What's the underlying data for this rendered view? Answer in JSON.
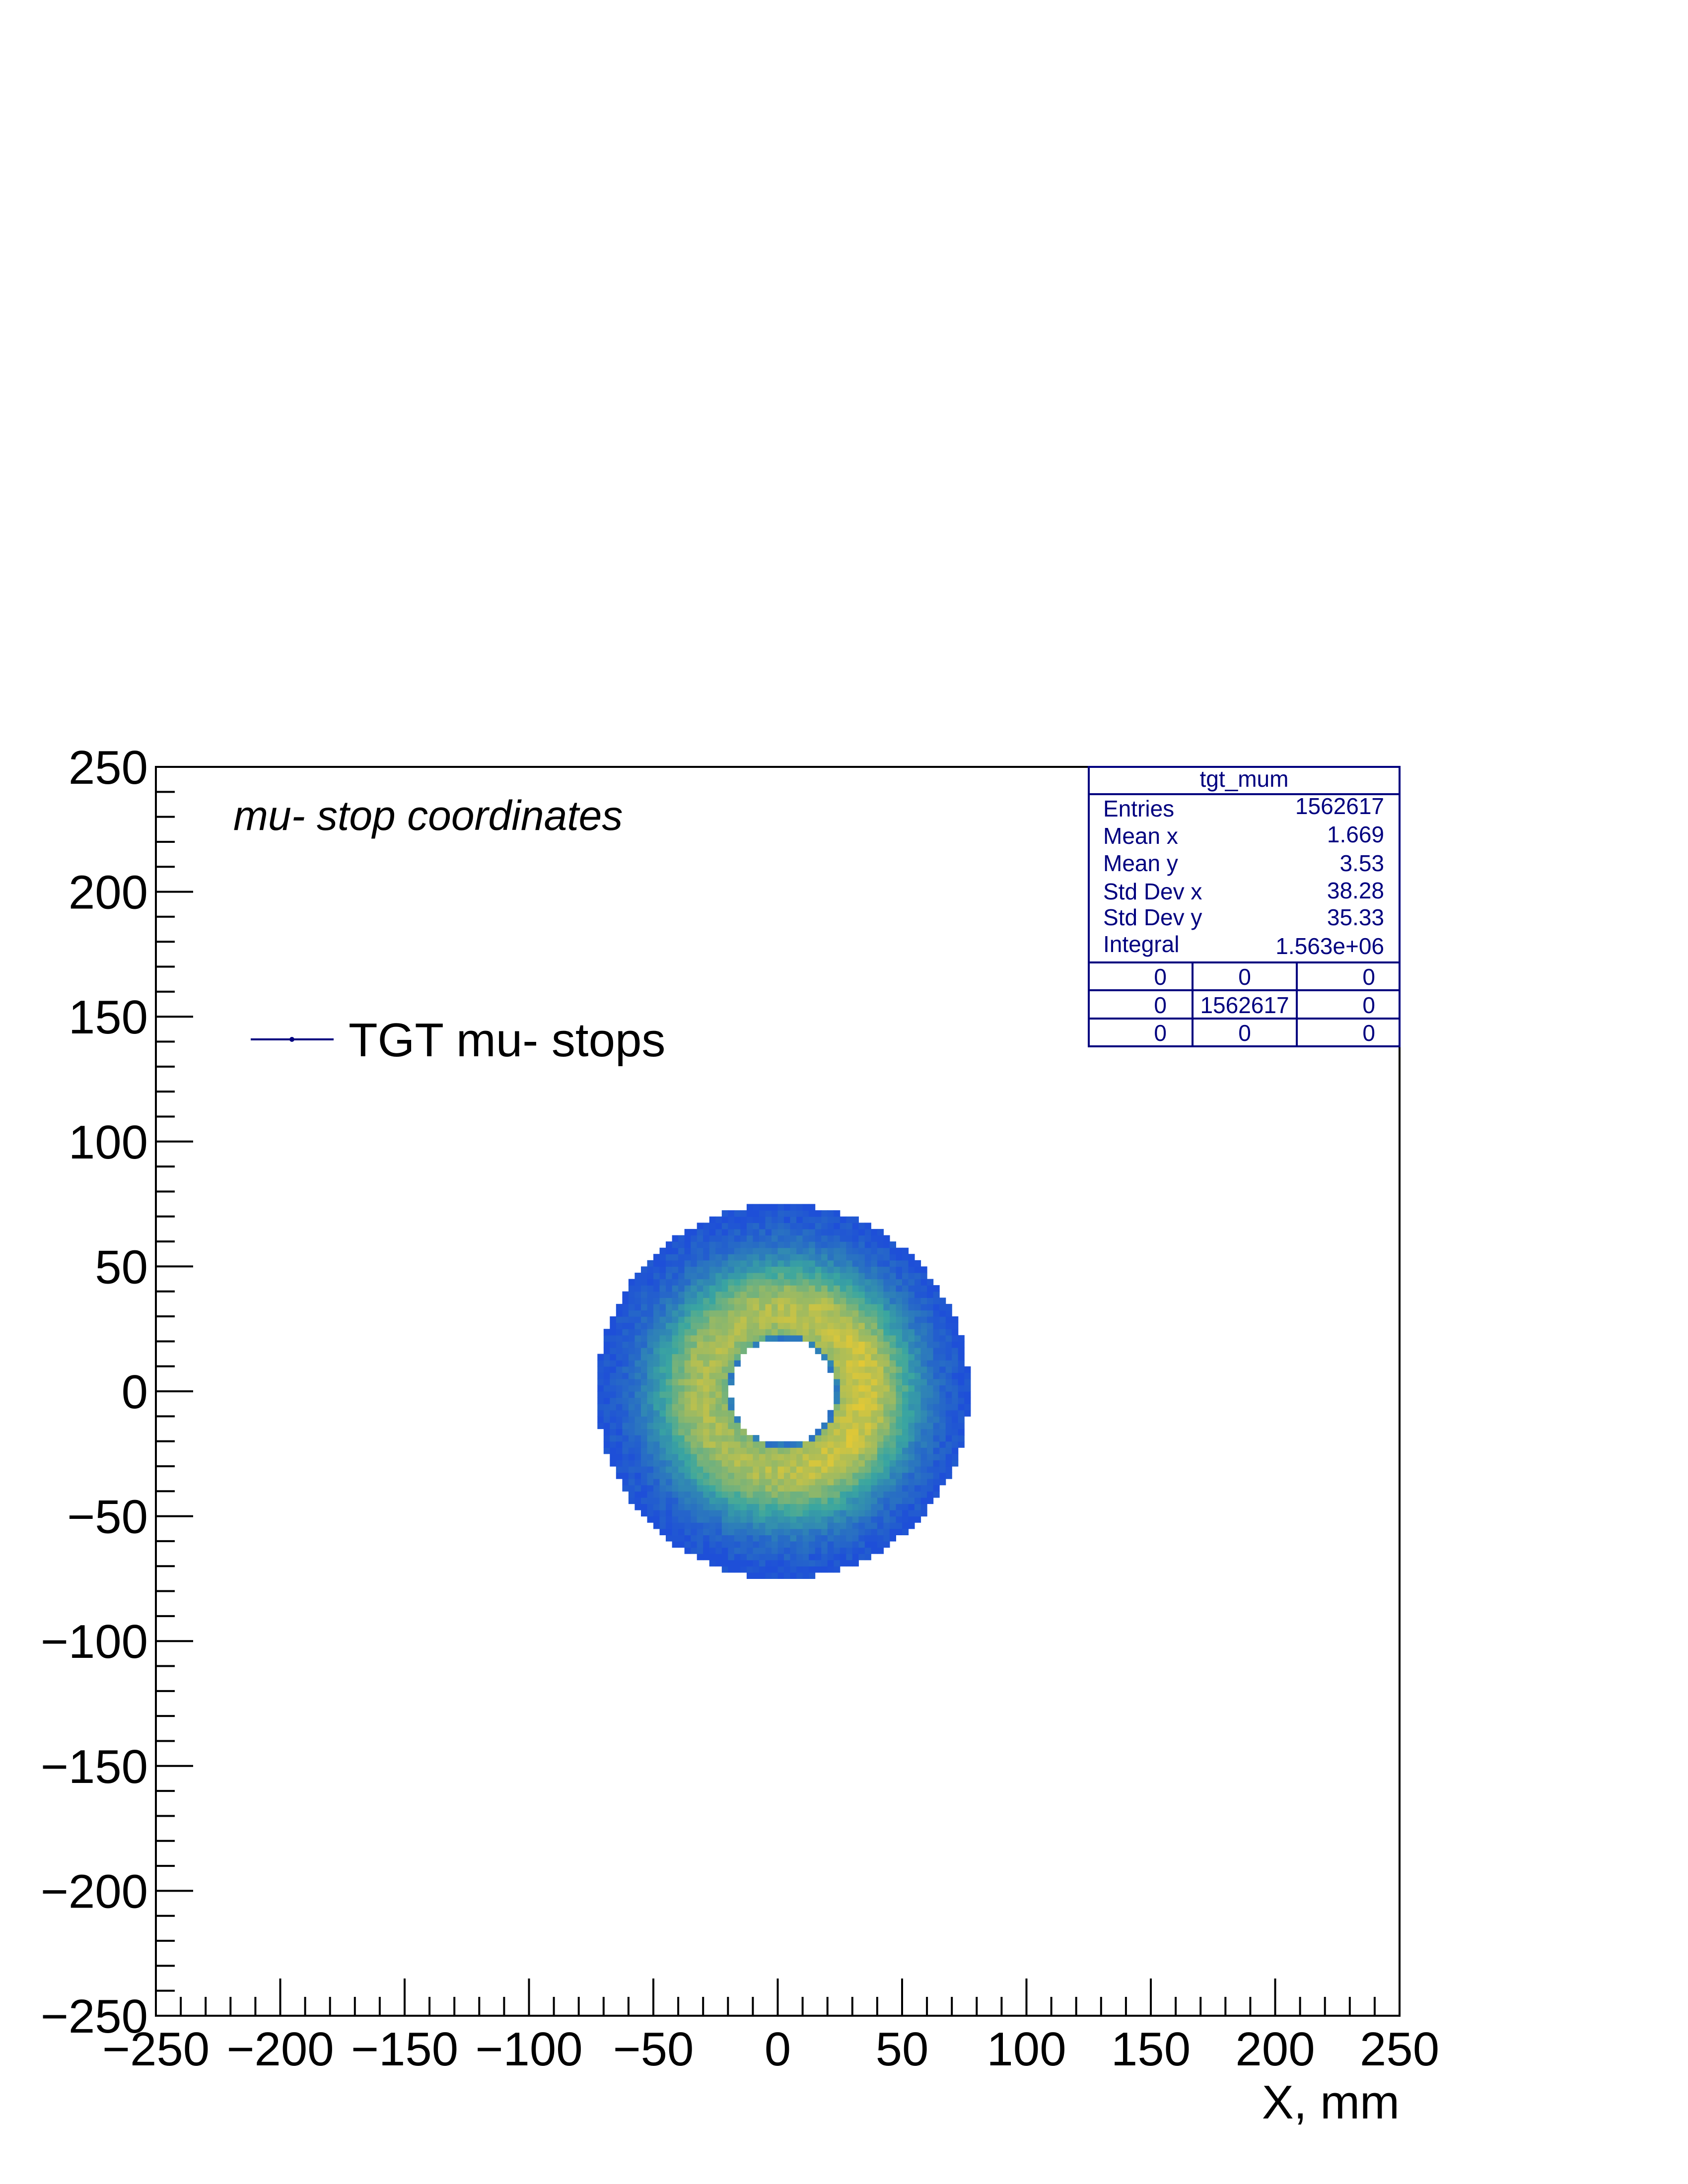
{
  "chart_data": {
    "type": "heatmap",
    "title": "",
    "annotation": "mu- stop coordinates",
    "xlabel": "X, mm",
    "ylabel": "",
    "xlim": [
      -250,
      250
    ],
    "ylim": [
      -250,
      250
    ],
    "xticks": [
      "−250",
      "−200",
      "−150",
      "−100",
      "−50",
      "0",
      "50",
      "100",
      "150",
      "200",
      "250"
    ],
    "yticks": [
      "250",
      "200",
      "150",
      "100",
      "50",
      "0",
      "−50",
      "−100",
      "−150",
      "−200",
      "−250"
    ],
    "grid": false,
    "legend": {
      "placement": "top-left",
      "entries": [
        {
          "label": "TGT mu- stops",
          "color": "#00007f"
        }
      ]
    },
    "distribution": {
      "shape": "annulus",
      "center": [
        2,
        0
      ],
      "inner_radius": 21,
      "outer_radius": 75,
      "bin_width_mm": 2.5,
      "peak_radius": 32,
      "peak_offset_x": 14
    },
    "colors": {
      "low": "#1e4fd8",
      "mid": "#3aa6a0",
      "high": "#f4cc2a",
      "stats_frame": "#00007f"
    },
    "stats": {
      "name": "tgt_mum",
      "rows": [
        {
          "label": "Entries",
          "value": "1562617"
        },
        {
          "label": "Mean x",
          "value": "1.669"
        },
        {
          "label": "Mean y",
          "value": "3.53"
        },
        {
          "label": "Std Dev x",
          "value": "38.28"
        },
        {
          "label": "Std Dev y",
          "value": "35.33"
        },
        {
          "label": "Integral",
          "value": "1.563e+06"
        }
      ],
      "grid": [
        [
          "0",
          "0",
          "0"
        ],
        [
          "0",
          "1562617",
          "0"
        ],
        [
          "0",
          "0",
          "0"
        ]
      ]
    }
  }
}
